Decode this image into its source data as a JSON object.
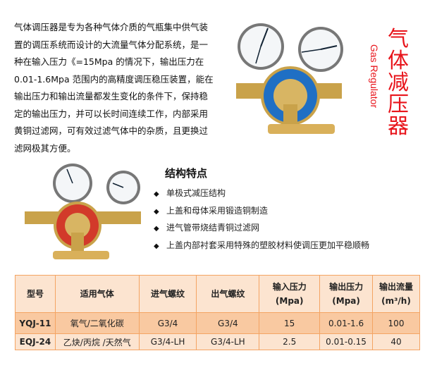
{
  "intro": {
    "lines": [
      "气体调压器是专为各种气体介质的气瓶集中供气装",
      "置的调压系统而设计的大流量气体分配系统，是一",
      "种在输入压力《=15Mpa 的情况下，输出压力在",
      "0.01-1.6Mpa 范围内的高精度调压稳压装置，能在",
      "输出压力和输出流量都发生变化的条件下，保持稳",
      "定的输出压力，并可以长时间连续工作，内部采用",
      "黄铜过滤网，可有效过滤气体中的杂质，且更换过",
      "滤网极其方便。"
    ]
  },
  "title": {
    "cn": [
      "气",
      "体",
      "减",
      "压",
      "器"
    ],
    "en": "Gas Regulator",
    "color": "#e8141b"
  },
  "features": {
    "heading": "结构特点",
    "bullet": "◆",
    "items": [
      "单极式减压结构",
      "上盖和母体采用锻造铜制造",
      "进气管带烧结青铜过滤网",
      "上盖内部衬套采用特殊的塑胶材料使调压更加平稳顺畅"
    ]
  },
  "table": {
    "headers": [
      "型号",
      "适用气体",
      "进气螺纹",
      "出气螺纹",
      "输入压力",
      "(Mpa)",
      "输出压力",
      "(Mpa)",
      "输出流量",
      "(m³/h)"
    ],
    "rows": [
      [
        "YQJ-11",
        "氧气/二氧化碳",
        "G3/4",
        "G3/4",
        "15",
        "0.01-1.6",
        "100"
      ],
      [
        "EQJ-24",
        "乙炔/丙烷 /天然气",
        "G3/4-LH",
        "G3/4-LH",
        "2.5",
        "0.01-0.15",
        "40"
      ]
    ],
    "colors": {
      "border": "#f4a463",
      "header": "#fce4d0",
      "row1": "#f9c9a1",
      "row2": "#fce4d0"
    }
  }
}
